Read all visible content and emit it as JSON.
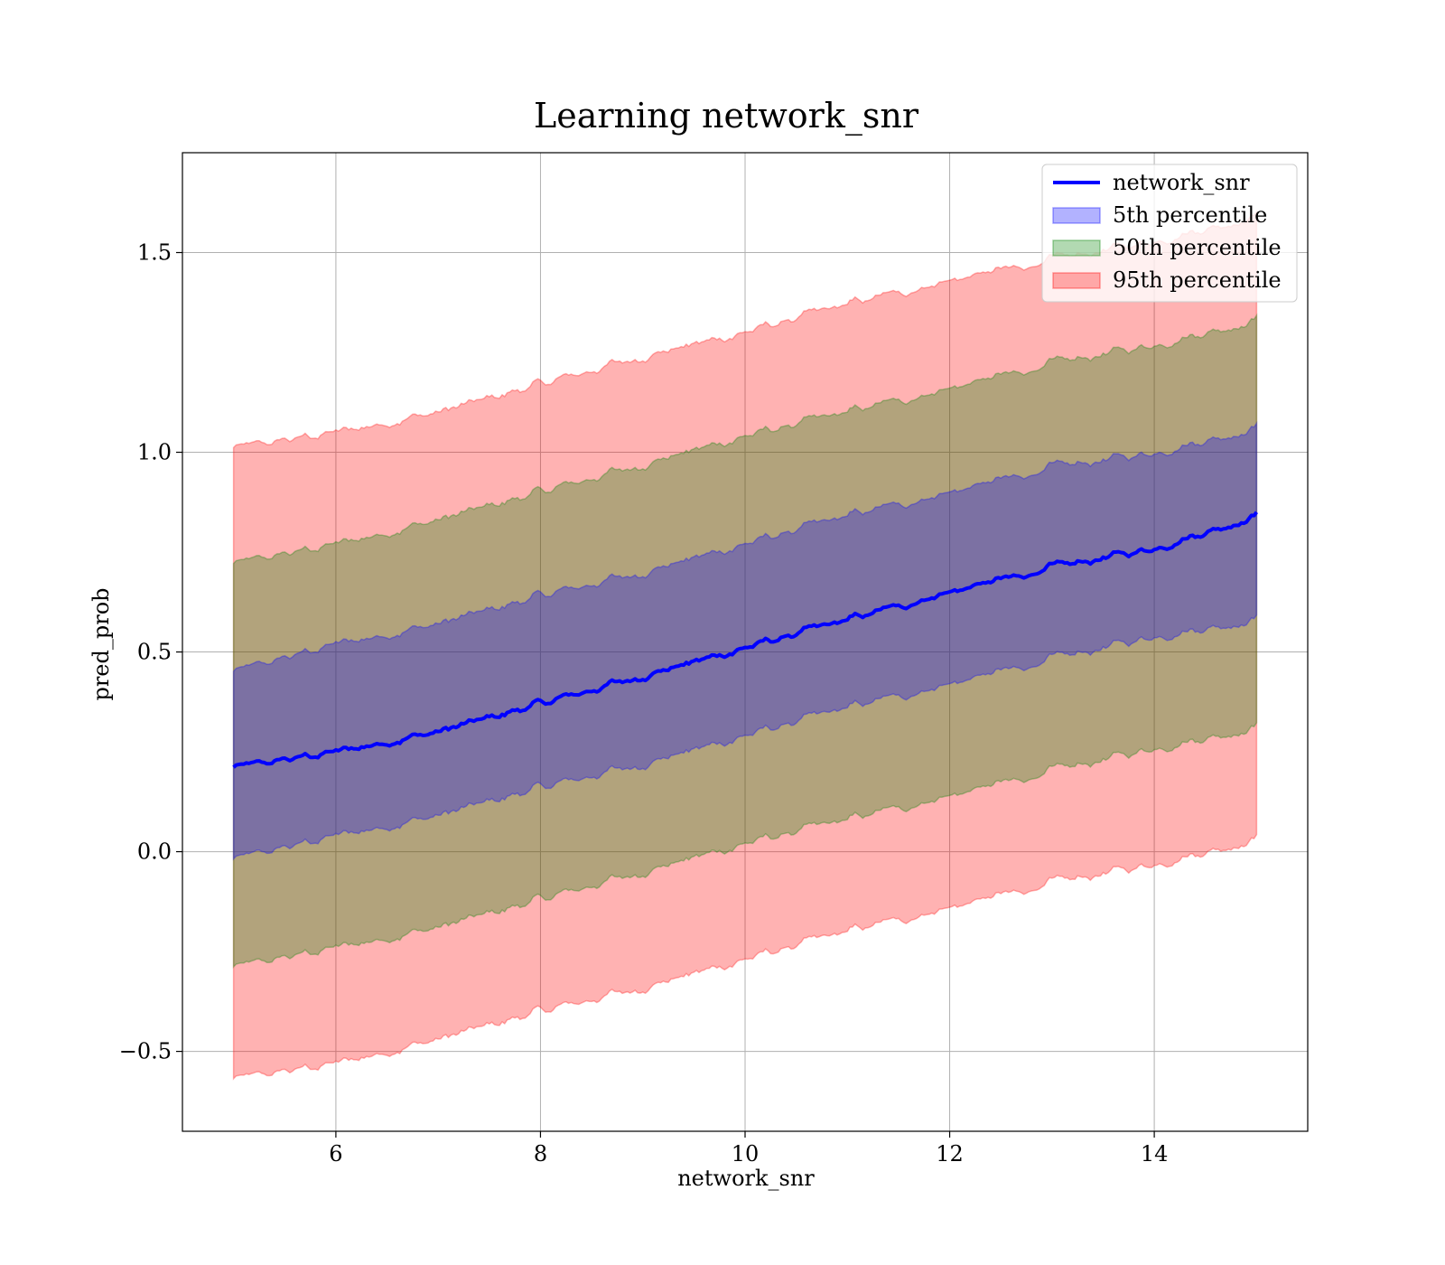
{
  "chart_data": {
    "type": "area",
    "title": "Learning network_snr",
    "xlabel": "network_snr",
    "ylabel": "pred_prob",
    "xlim": [
      4.5,
      15.5
    ],
    "ylim": [
      -0.7,
      1.75
    ],
    "xticks": [
      6,
      8,
      10,
      12,
      14
    ],
    "yticks": [
      -0.5,
      0.0,
      0.5,
      1.0,
      1.5
    ],
    "xtick_labels": [
      "6",
      "8",
      "10",
      "12",
      "14"
    ],
    "ytick_labels": [
      "−0.5",
      "0.0",
      "0.5",
      "1.0",
      "1.5"
    ],
    "grid": true,
    "legend_position": "top-right",
    "x": [
      5,
      6,
      7,
      8,
      9,
      10,
      11,
      12,
      13,
      14,
      15
    ],
    "series": [
      {
        "name": "network_snr",
        "kind": "line",
        "color": "#0000ff",
        "values": [
          0.21,
          0.25,
          0.3,
          0.37,
          0.44,
          0.51,
          0.58,
          0.65,
          0.71,
          0.76,
          0.84
        ]
      },
      {
        "name": "5th percentile",
        "kind": "band",
        "color": "#0000ff",
        "lower": [
          -0.02,
          0.04,
          0.09,
          0.16,
          0.22,
          0.29,
          0.36,
          0.42,
          0.48,
          0.54,
          0.58
        ],
        "upper": [
          0.45,
          0.52,
          0.57,
          0.64,
          0.7,
          0.77,
          0.84,
          0.9,
          0.96,
          1.0,
          1.06
        ]
      },
      {
        "name": "50th percentile",
        "kind": "band",
        "color": "#008000",
        "lower": [
          -0.29,
          -0.24,
          -0.19,
          -0.12,
          -0.05,
          0.02,
          0.08,
          0.14,
          0.2,
          0.26,
          0.31
        ],
        "upper": [
          0.72,
          0.77,
          0.83,
          0.9,
          0.97,
          1.04,
          1.1,
          1.16,
          1.22,
          1.27,
          1.33
        ]
      },
      {
        "name": "95th percentile",
        "kind": "band",
        "color": "#ff0000",
        "lower": [
          -0.57,
          -0.53,
          -0.47,
          -0.4,
          -0.34,
          -0.27,
          -0.2,
          -0.14,
          -0.08,
          -0.03,
          0.03
        ],
        "upper": [
          1.01,
          1.05,
          1.1,
          1.17,
          1.24,
          1.3,
          1.37,
          1.43,
          1.48,
          1.53,
          1.59
        ]
      }
    ]
  }
}
